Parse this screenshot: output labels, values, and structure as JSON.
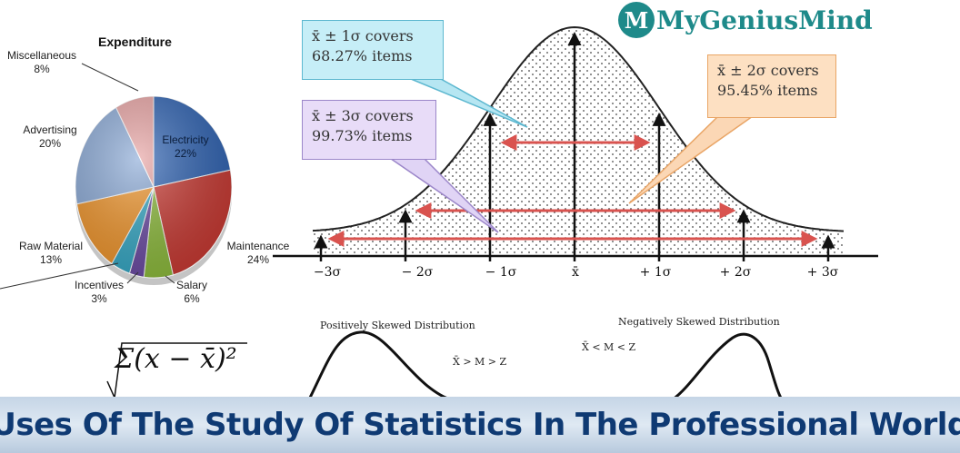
{
  "pie": {
    "title": "Expenditure",
    "slices": [
      {
        "label": "Electricity",
        "pct": "22%",
        "value": 22,
        "color": "#2f63b3"
      },
      {
        "label": "Maintenance",
        "pct": "24%",
        "value": 24,
        "color": "#c93a33"
      },
      {
        "label": "Salary",
        "pct": "6%",
        "value": 6,
        "color": "#8dbb3c"
      },
      {
        "label": "Incentives",
        "pct": "3%",
        "value": 3,
        "color": "#6b4aa3"
      },
      {
        "label": "",
        "pct": "",
        "value": 4,
        "color": "#35a8c5"
      },
      {
        "label": "Raw Material",
        "pct": "13%",
        "value": 13,
        "color": "#f0952b"
      },
      {
        "label": "Advertising",
        "pct": "20%",
        "value": 20,
        "color": "#8aa9d6"
      },
      {
        "label": "Miscellaneous",
        "pct": "8%",
        "value": 8,
        "color": "#e8a3a3"
      }
    ]
  },
  "normal": {
    "callouts": {
      "one_sigma": {
        "line1": "x̄ ± 1σ covers",
        "line2": "68.27% items"
      },
      "two_sigma": {
        "line1": "x̄ ± 2σ covers",
        "line2": "95.45% items"
      },
      "three_sigma": {
        "line1": "x̄ ± 3σ covers",
        "line2": "99.73% items"
      }
    },
    "axis_labels": [
      "−3σ",
      "− 2σ",
      "− 1σ",
      "x̄",
      "+ 1σ",
      "+ 2σ",
      "+ 3σ"
    ]
  },
  "skew": {
    "positive_title": "Positively Skewed Distribution",
    "positive_relation": "X̄ > M > Z",
    "negative_title": "Negatively Skewed Distribution",
    "negative_relation": "X̄ < M < Z"
  },
  "formula": "Σ(x − x̄)²",
  "logo": {
    "badge": "M",
    "text": "MyGeniusMind"
  },
  "banner": {
    "title": "Uses Of The Study Of Statistics In The Professional World"
  },
  "colors": {
    "banner_text": "#0f3a73",
    "arrow_red": "#d9534f",
    "logo": "#1e8a8a"
  }
}
